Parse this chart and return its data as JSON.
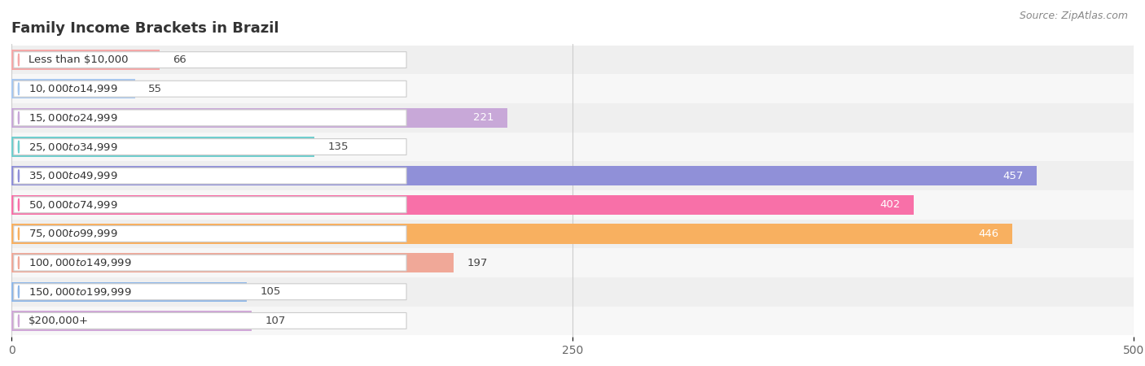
{
  "title": "Family Income Brackets in Brazil",
  "source": "Source: ZipAtlas.com",
  "categories": [
    "Less than $10,000",
    "$10,000 to $14,999",
    "$15,000 to $24,999",
    "$25,000 to $34,999",
    "$35,000 to $49,999",
    "$50,000 to $74,999",
    "$75,000 to $99,999",
    "$100,000 to $149,999",
    "$150,000 to $199,999",
    "$200,000+"
  ],
  "values": [
    66,
    55,
    221,
    135,
    457,
    402,
    446,
    197,
    105,
    107
  ],
  "bar_colors": [
    "#f5a8a8",
    "#a8c8f0",
    "#c8a8d8",
    "#70cece",
    "#9090d8",
    "#f870a8",
    "#f8b060",
    "#f0a898",
    "#90b8e8",
    "#d0a8d8"
  ],
  "xlim": [
    0,
    500
  ],
  "xticks": [
    0,
    250,
    500
  ],
  "title_fontsize": 13,
  "label_fontsize": 9.5,
  "value_fontsize": 9.5,
  "source_fontsize": 9,
  "bar_height": 0.68,
  "row_colors": [
    "#efefef",
    "#f7f7f7"
  ]
}
